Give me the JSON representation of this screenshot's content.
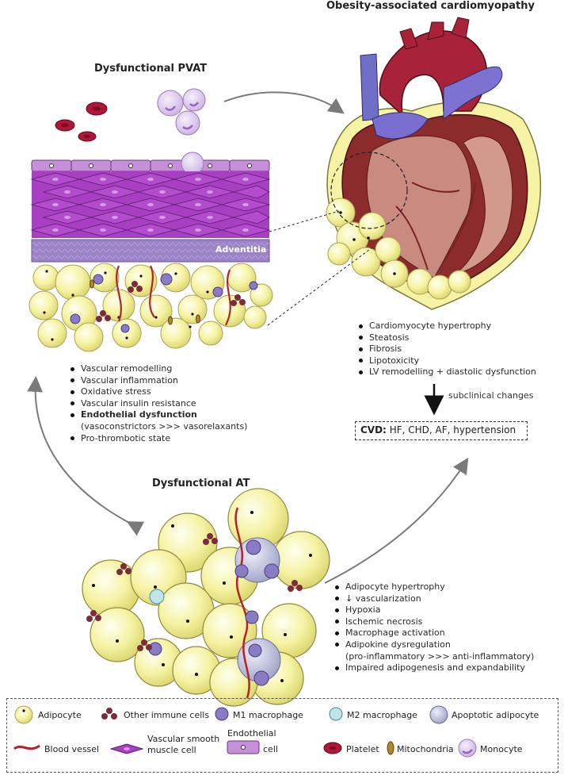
{
  "titles": {
    "heart": "Obesity-associated cardiomyopathy",
    "pvat": "Dysfunctional PVAT",
    "at": "Dysfunctional AT"
  },
  "adventitia_label": "Adventitia",
  "heart_effects": [
    "Cardiomyocyte hypertrophy",
    "Steatosis",
    "Fibrosis",
    "Lipotoxicity",
    "LV remodelling + diastolic dysfunction"
  ],
  "subclinical_label": "subclinical changes",
  "cvd": {
    "label": "CVD:",
    "text": "HF, CHD, AF, hypertension"
  },
  "pvat_effects": [
    {
      "text": "Vascular remodelling",
      "bold": false
    },
    {
      "text": "Vascular inflammation",
      "bold": false
    },
    {
      "text": "Oxidative stress",
      "bold": false
    },
    {
      "text": "Vascular insulin resistance",
      "bold": false
    },
    {
      "text": "Endothelial dysfunction",
      "bold": true
    },
    {
      "text": "(vasoconstrictors >>> vasorelaxants)",
      "continuation": true
    },
    {
      "text": "Pro-thrombotic state",
      "bold": false
    }
  ],
  "at_effects": [
    {
      "text": "Adipocyte hypertrophy"
    },
    {
      "text": "↓ vascularization"
    },
    {
      "text": "Hypoxia"
    },
    {
      "text": "Ischemic necrosis"
    },
    {
      "text": "Macrophage activation"
    },
    {
      "text": "Adipokine dysregulation"
    },
    {
      "text": "(pro-inflammatory >>> anti-inflammatory)",
      "continuation": true
    },
    {
      "text": "Impaired adipogenesis and expandability"
    }
  ],
  "legend": {
    "adipocyte": "Adipocyte",
    "immune": "Other immune cells",
    "m1": "M1 macrophage",
    "m2": "M2 macrophage",
    "apoptotic": "Apoptotic adipocyte",
    "vessel": "Blood vessel",
    "vsmc_1": "Vascular smooth",
    "vsmc_2": "muscle cell",
    "endo_1": "Endothelial",
    "endo_2": "cell",
    "platelet": "Platelet",
    "mito": "Mitochondria",
    "monocyte": "Monocyte"
  },
  "colors": {
    "adipocyte": "#f6f3a4",
    "vessel": "#b3242a",
    "immune": "#7a2c3a",
    "macrophage": "#8a7cc4",
    "smooth_muscle": "#a63fc0",
    "endothelial": "#c78fd8",
    "adventitia": "#9c83c8",
    "platelet": "#b01638",
    "monocyte": "#e2cdef"
  }
}
